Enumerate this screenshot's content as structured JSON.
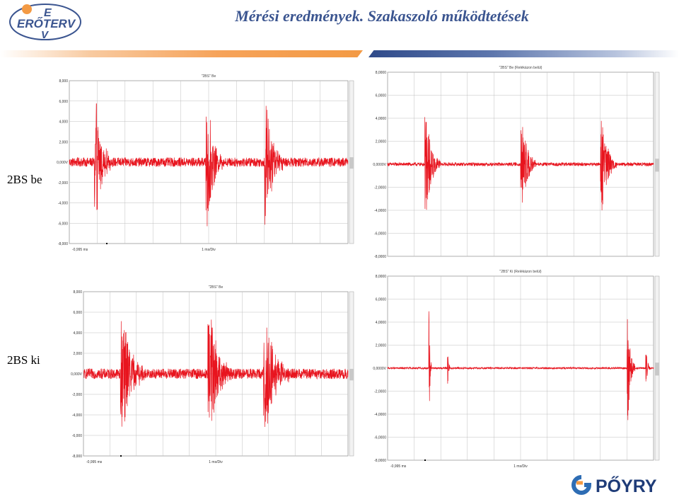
{
  "header": {
    "title": "Mérési eredmények. Szakaszoló működtetések",
    "logo_text": "ERŐTERV",
    "logo_letter_top": "E",
    "logo_letter_bottom": "V"
  },
  "labels": {
    "be": "2BS be",
    "ki": "2BS ki"
  },
  "footer": {
    "brand": "PŐYRY"
  },
  "colors": {
    "signal": "#e8141e",
    "title": "#3b5590",
    "grid": "#bfbfbf"
  },
  "chart_data": [
    {
      "type": "line",
      "title": "\"2BS\" Be",
      "y_ticks": [
        "8,000",
        "6,000",
        "4,000",
        "2,000",
        "0,000V",
        "-2,000",
        "-4,000",
        "-6,000",
        "-8,000"
      ],
      "ylim": [
        -8,
        8
      ],
      "x_start_label": "-0,995 ms",
      "x_div_label": "1 ms/Div",
      "noise": 0.45,
      "bursts": [
        {
          "start": 0.09,
          "end": 0.15,
          "amp": 6.2
        },
        {
          "start": 0.49,
          "end": 0.55,
          "amp": 6.2
        },
        {
          "start": 0.7,
          "end": 0.77,
          "amp": 6.0
        }
      ]
    },
    {
      "type": "line",
      "title": "\"2BS\" Be (Relékázon belül)",
      "y_ticks": [
        "8,0000",
        "6,0000",
        "4,0000",
        "2,0000",
        "0,0000V",
        "-2,0000",
        "-4,0000",
        "-6,0000",
        "-8,0000"
      ],
      "ylim": [
        -8,
        8
      ],
      "x_start_label": "",
      "x_div_label": "",
      "noise": 0.15,
      "bursts": [
        {
          "start": 0.14,
          "end": 0.2,
          "amp": 4.2
        },
        {
          "start": 0.5,
          "end": 0.56,
          "amp": 3.8
        },
        {
          "start": 0.8,
          "end": 0.86,
          "amp": 4.4
        }
      ]
    },
    {
      "type": "line",
      "title": "\"2BS\" Be",
      "y_ticks": [
        "8,000",
        "6,000",
        "4,000",
        "2,000",
        "0,000V",
        "-2,000",
        "-4,000",
        "-6,000",
        "-8,000"
      ],
      "ylim": [
        -8,
        8
      ],
      "x_start_label": "-0,995 ms",
      "x_div_label": "1 ms/Div",
      "noise": 0.5,
      "bursts": [
        {
          "start": 0.14,
          "end": 0.23,
          "amp": 6.0
        },
        {
          "start": 0.47,
          "end": 0.56,
          "amp": 5.8
        },
        {
          "start": 0.68,
          "end": 0.78,
          "amp": 5.6
        }
      ]
    },
    {
      "type": "line",
      "title": "\"2BS\" Ki (Relékázon belül)",
      "y_ticks": [
        "8,0000",
        "6,0000",
        "4,0000",
        "2,0000",
        "0,0000V",
        "-2,0000",
        "-4,0000",
        "-6,0000",
        "-8,0000"
      ],
      "ylim": [
        -8,
        8
      ],
      "x_start_label": "-0,995 ms",
      "x_div_label": "1 ms/Div",
      "noise": 0.08,
      "bursts": [
        {
          "start": 0.155,
          "end": 0.165,
          "amp": 5.2
        },
        {
          "start": 0.225,
          "end": 0.235,
          "amp": 2.2
        },
        {
          "start": 0.9,
          "end": 0.93,
          "amp": 5.0
        },
        {
          "start": 0.97,
          "end": 0.99,
          "amp": 1.6
        }
      ]
    }
  ]
}
